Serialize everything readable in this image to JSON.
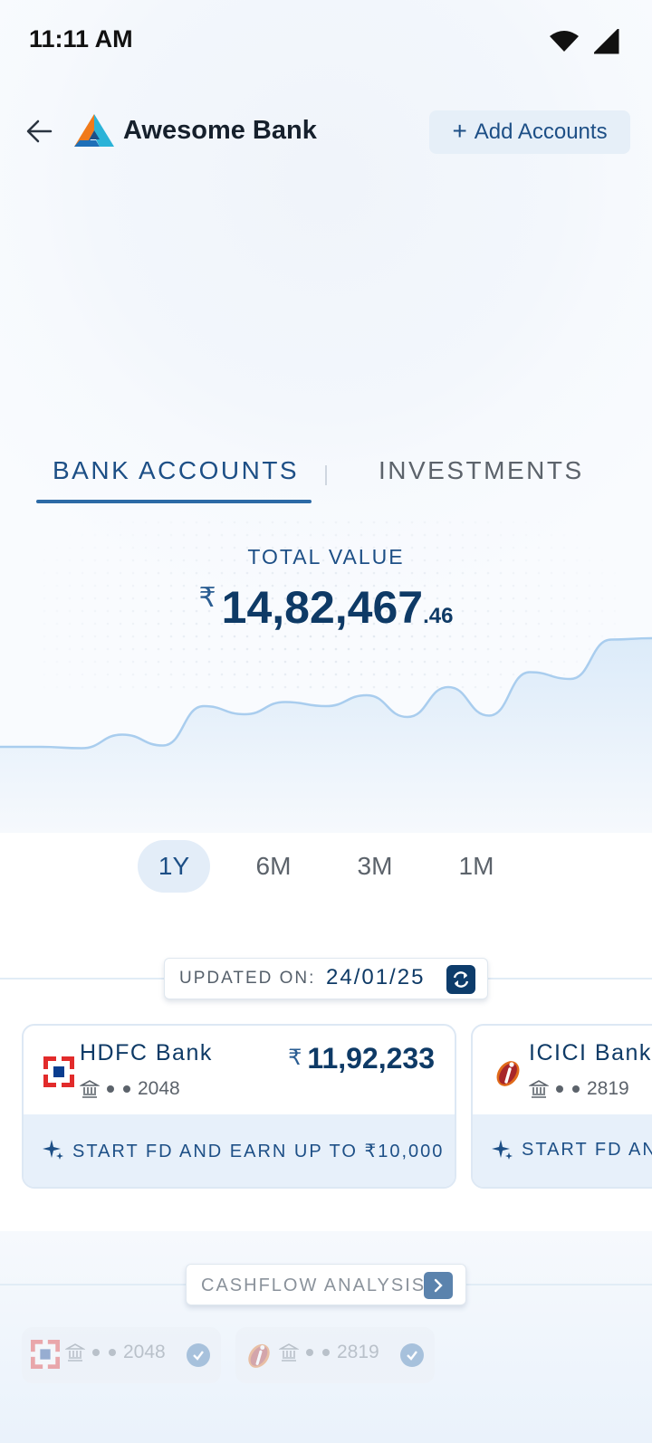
{
  "status_bar": {
    "time": "11:11 AM"
  },
  "header": {
    "brand": "Awesome Bank",
    "add_accounts_label": "Add Accounts"
  },
  "tabs": [
    {
      "label": "BANK ACCOUNTS",
      "active": true
    },
    {
      "label": "INVESTMENTS",
      "active": false
    }
  ],
  "summary": {
    "total_label": "TOTAL VALUE",
    "currency": "₹",
    "amount_main": "14,82,467",
    "amount_decimal": ".46"
  },
  "chart_data": {
    "type": "area",
    "x": [
      0,
      1,
      2,
      3,
      4,
      5,
      6,
      7,
      8,
      9,
      10,
      11,
      12,
      13,
      14,
      15,
      16
    ],
    "y": [
      0.1,
      0.1,
      0.09,
      0.19,
      0.11,
      0.4,
      0.34,
      0.43,
      0.4,
      0.48,
      0.32,
      0.54,
      0.33,
      0.65,
      0.6,
      0.89,
      0.9
    ],
    "title": "",
    "xlabel": "",
    "ylabel": "",
    "ylim": [
      0,
      1
    ],
    "grid": false,
    "colors": {
      "line": "#a9cdee",
      "fill": "#e7f1fb"
    }
  },
  "range": {
    "options": [
      "1Y",
      "6M",
      "3M",
      "1M"
    ],
    "selected": "1Y"
  },
  "updated": {
    "label": "UPDATED ON:",
    "date": "24/01/25"
  },
  "banks": [
    {
      "name": "HDFC Bank",
      "account_suffix": "2048",
      "currency": "₹",
      "amount": "11,92,233",
      "offer": "START FD AND EARN UP TO ₹10,000"
    },
    {
      "name": "ICICI Bank",
      "account_suffix": "2819",
      "offer": "START FD AN"
    }
  ],
  "cashflow": {
    "label": "CASHFLOW ANALYSIS",
    "accounts": [
      {
        "account_suffix": "2048"
      },
      {
        "account_suffix": "2819"
      }
    ]
  },
  "colors": {
    "accent": "#1d4f86",
    "accent_dark": "#0e3a66",
    "hdfc_red": "#e22b2b",
    "hdfc_blue": "#0a3d8f",
    "icici_orange": "#e06a1a"
  }
}
